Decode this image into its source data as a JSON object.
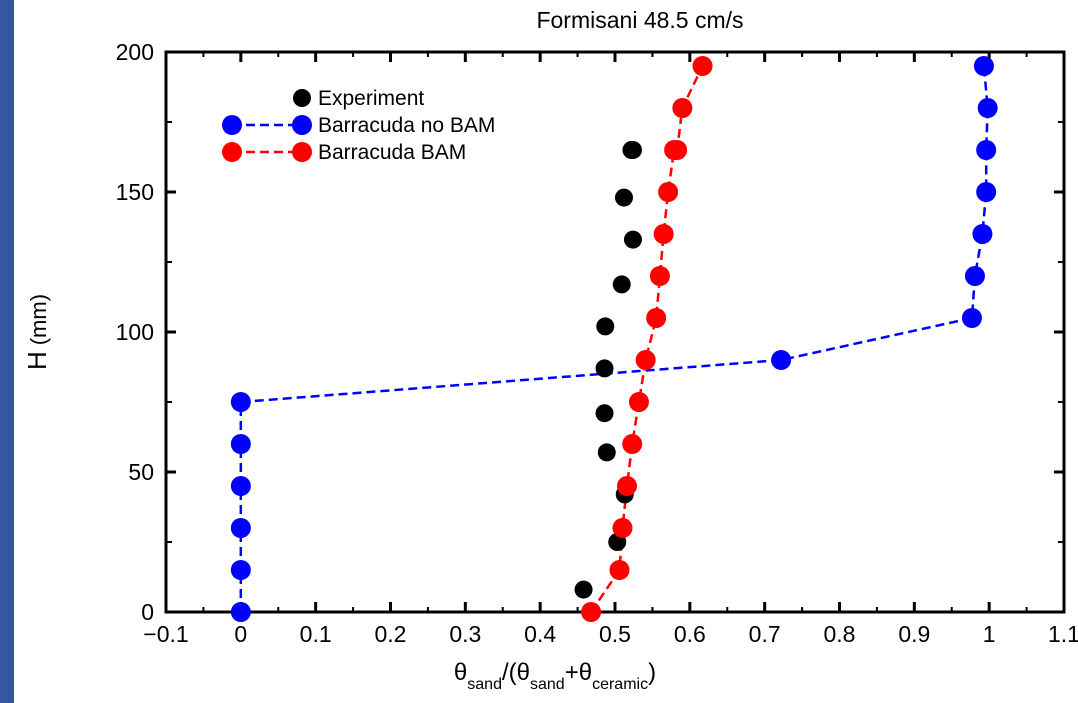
{
  "chart_data": {
    "type": "scatter",
    "title": "Formisani 48.5 cm/s",
    "xlabel": {
      "base1": "θ",
      "sub1": "sand",
      "mid": "/(θ",
      "sub2": "sand",
      "plus": "+θ",
      "sub3": "ceramic",
      "end": ")"
    },
    "ylabel": {
      "main": "H",
      "unit": "(mm)"
    },
    "xlim": [
      -0.1,
      1.1
    ],
    "ylim": [
      0,
      200
    ],
    "xticks": [
      {
        "v": -0.1,
        "label": "−0.1"
      },
      {
        "v": 0,
        "label": "0"
      },
      {
        "v": 0.1,
        "label": "0.1"
      },
      {
        "v": 0.2,
        "label": "0.2"
      },
      {
        "v": 0.3,
        "label": "0.3"
      },
      {
        "v": 0.4,
        "label": "0.4"
      },
      {
        "v": 0.5,
        "label": "0.5"
      },
      {
        "v": 0.6,
        "label": "0.6"
      },
      {
        "v": 0.7,
        "label": "0.7"
      },
      {
        "v": 0.8,
        "label": "0.8"
      },
      {
        "v": 0.9,
        "label": "0.9"
      },
      {
        "v": 1,
        "label": "1"
      },
      {
        "v": 1.1,
        "label": "1.1"
      }
    ],
    "yticks": [
      {
        "v": 0,
        "label": "0"
      },
      {
        "v": 50,
        "label": "50"
      },
      {
        "v": 100,
        "label": "100"
      },
      {
        "v": 150,
        "label": "150"
      },
      {
        "v": 200,
        "label": "200"
      }
    ],
    "grid": false,
    "legend_position": "top-left",
    "series": [
      {
        "name": "Experiment",
        "color": "#000000",
        "style": "markers",
        "x": [
          0.458,
          0.503,
          0.513,
          0.489,
          0.486,
          0.486,
          0.487,
          0.509,
          0.524,
          0.512,
          0.524,
          0.522
        ],
        "y": [
          8,
          25,
          42,
          57,
          71,
          87,
          102,
          117,
          133,
          148,
          165,
          165
        ]
      },
      {
        "name": "Barracuda no BAM",
        "color": "#0000ff",
        "style": "dashed-markers",
        "x": [
          0.0,
          0.0,
          0.0,
          0.0,
          0.0,
          0.0,
          0.722,
          0.977,
          0.981,
          0.991,
          0.996,
          0.996,
          0.998,
          0.993
        ],
        "y": [
          0,
          15,
          30,
          45,
          60,
          75,
          90,
          105,
          120,
          135,
          150,
          165,
          180,
          195
        ]
      },
      {
        "name": "Barracuda BAM",
        "color": "#ff0000",
        "style": "dashed-markers",
        "x": [
          0.468,
          0.506,
          0.51,
          0.516,
          0.523,
          0.532,
          0.541,
          0.555,
          0.56,
          0.565,
          0.571,
          0.579,
          0.583,
          0.59,
          0.617
        ],
        "y": [
          0,
          15,
          30,
          45,
          60,
          75,
          90,
          105,
          120,
          135,
          150,
          165,
          165,
          180,
          195
        ]
      }
    ]
  }
}
